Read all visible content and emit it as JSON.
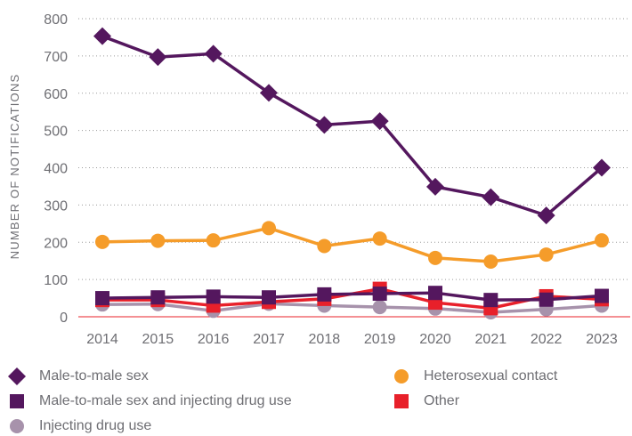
{
  "chart_data": {
    "type": "line",
    "title": "",
    "xlabel": "",
    "ylabel": "NUMBER OF NOTIFICATIONS",
    "ylim": [
      0,
      800
    ],
    "yticks": [
      0,
      100,
      200,
      300,
      400,
      500,
      600,
      700,
      800
    ],
    "grid": "horizontal dotted",
    "legend_position": "bottom",
    "x": [
      "2014",
      "2015",
      "2016",
      "2017",
      "2018",
      "2019",
      "2020",
      "2021",
      "2022",
      "2023"
    ],
    "series": [
      {
        "name": "Male-to-male sex",
        "color": "#54175e",
        "marker": "diamond",
        "values": [
          753,
          697,
          706,
          601,
          515,
          525,
          349,
          321,
          272,
          400
        ]
      },
      {
        "name": "Heterosexual contact",
        "color": "#f59c2a",
        "marker": "circle",
        "values": [
          201,
          204,
          205,
          238,
          190,
          210,
          158,
          148,
          167,
          205
        ]
      },
      {
        "name": "Male-to-male sex and injecting drug use",
        "color": "#54175e",
        "marker": "square",
        "values": [
          50,
          52,
          54,
          52,
          60,
          62,
          64,
          45,
          46,
          56
        ]
      },
      {
        "name": "Other",
        "color": "#e8202a",
        "marker": "square",
        "values": [
          45,
          45,
          30,
          40,
          48,
          75,
          38,
          23,
          55,
          47
        ]
      },
      {
        "name": "Injecting drug use",
        "color": "#a792ab",
        "marker": "circle",
        "values": [
          33,
          34,
          16,
          35,
          30,
          26,
          22,
          12,
          20,
          30
        ]
      }
    ]
  }
}
